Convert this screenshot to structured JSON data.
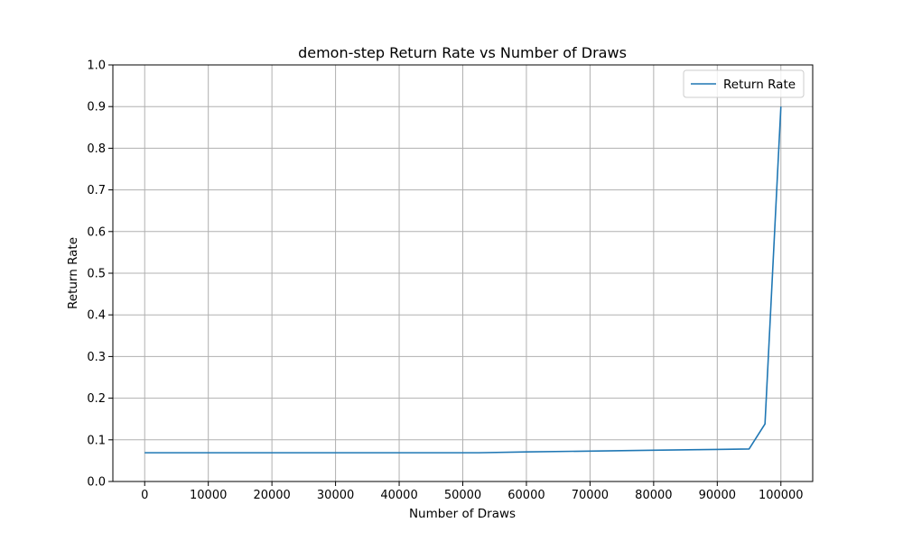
{
  "chart_data": {
    "type": "line",
    "title": "demon-step Return Rate vs Number of Draws",
    "xlabel": "Number of Draws",
    "ylabel": "Return Rate",
    "xlim": [
      -5000,
      105000
    ],
    "ylim": [
      0,
      1.0
    ],
    "xticks": [
      0,
      10000,
      20000,
      30000,
      40000,
      50000,
      60000,
      70000,
      80000,
      90000,
      100000
    ],
    "xtick_labels": [
      "0",
      "10000",
      "20000",
      "30000",
      "40000",
      "50000",
      "60000",
      "70000",
      "80000",
      "90000",
      "100000"
    ],
    "yticks": [
      0.0,
      0.1,
      0.2,
      0.3,
      0.4,
      0.5,
      0.6,
      0.7,
      0.8,
      0.9,
      1.0
    ],
    "ytick_labels": [
      "0.0",
      "0.1",
      "0.2",
      "0.3",
      "0.4",
      "0.5",
      "0.6",
      "0.7",
      "0.8",
      "0.9",
      "1.0"
    ],
    "grid": true,
    "legend_position": "top-right",
    "series": [
      {
        "name": "Return Rate",
        "color": "#1f77b4",
        "x": [
          0,
          10000,
          20000,
          30000,
          40000,
          50000,
          52500,
          60000,
          70000,
          80000,
          90000,
          95000,
          97500,
          100000
        ],
        "y": [
          0.069,
          0.069,
          0.069,
          0.069,
          0.069,
          0.069,
          0.069,
          0.071,
          0.073,
          0.075,
          0.077,
          0.078,
          0.138,
          0.9
        ]
      }
    ]
  }
}
